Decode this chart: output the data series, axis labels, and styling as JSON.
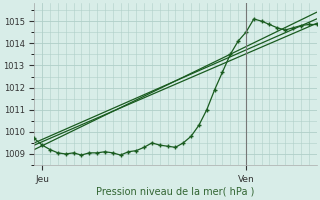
{
  "title": "Pression niveau de la mer( hPa )",
  "ylabel_values": [
    1009,
    1010,
    1011,
    1012,
    1013,
    1014,
    1015
  ],
  "ylim": [
    1008.5,
    1015.8
  ],
  "xlim": [
    0,
    36
  ],
  "xtick_positions": [
    1,
    27
  ],
  "xtick_labels": [
    "Jeu",
    "Ven"
  ],
  "vline_x": 27,
  "background_color": "#d8ede8",
  "grid_color": "#b0cfc8",
  "line_color": "#1a5c20",
  "figsize": [
    3.2,
    2.0
  ],
  "dpi": 100,
  "wiggly_x": [
    0,
    1,
    2,
    3,
    4,
    5,
    6,
    7,
    8,
    9,
    10,
    11,
    12,
    13,
    14,
    15,
    16,
    17,
    18,
    19,
    20,
    21,
    22,
    23,
    24,
    25,
    26,
    27,
    28,
    29,
    30,
    31,
    32,
    33,
    34,
    35,
    36
  ],
  "wiggly_y": [
    1009.7,
    1009.4,
    1009.2,
    1009.05,
    1009.0,
    1009.05,
    1008.95,
    1009.05,
    1009.05,
    1009.1,
    1009.05,
    1008.95,
    1009.1,
    1009.15,
    1009.3,
    1009.5,
    1009.4,
    1009.35,
    1009.3,
    1009.5,
    1009.8,
    1010.3,
    1011.0,
    1011.9,
    1012.7,
    1013.5,
    1014.1,
    1014.5,
    1015.1,
    1015.0,
    1014.85,
    1014.7,
    1014.6,
    1014.7,
    1014.8,
    1014.85,
    1014.85
  ],
  "line1_x": [
    0,
    36
  ],
  "line1_y": [
    1009.5,
    1015.1
  ],
  "line2_x": [
    0,
    36
  ],
  "line2_y": [
    1009.4,
    1014.9
  ],
  "line3_x": [
    0,
    36
  ],
  "line3_y": [
    1009.2,
    1015.4
  ]
}
